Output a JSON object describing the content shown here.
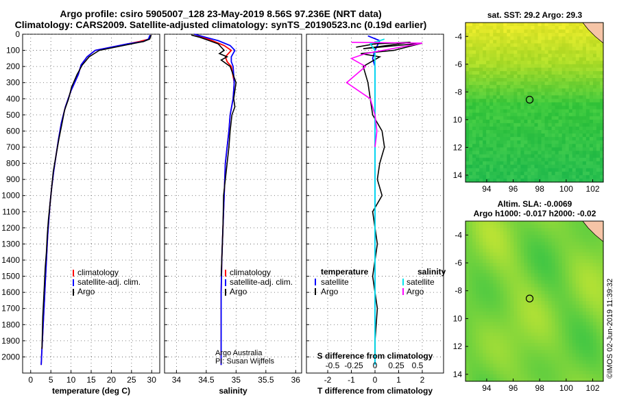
{
  "title_line1": "Argo profile: csiro 5905007_128 23-May-2019 8.56S 97.236E (NRT data)",
  "title_line2": "Climatology: CARS2009. Satellite-adjusted climatology: synTS_20190523.nc (0.19d earlier)",
  "map1_title": "sat. SST: 29.2 Argo: 29.3",
  "map2_title1": "Altim. SLA: -0.0069",
  "map2_title2": "Argo h1000: -0.017 h2000: -0.02",
  "credit": "©IMOS 02-Jun-2019 11:39:32",
  "colors": {
    "climatology": "#ff0000",
    "satellite": "#0000ff",
    "argo": "#000000",
    "satellite_s": "#00e5ee",
    "argo_s": "#ff00ff"
  },
  "chart_data": [
    {
      "type": "line",
      "xlabel": "temperature (deg C)",
      "ylabel": "",
      "xlim": [
        -2,
        32
      ],
      "ylim": [
        2100,
        0
      ],
      "xticks": [
        "0",
        "5",
        "10",
        "15",
        "20",
        "25",
        "30"
      ],
      "yticks": [
        "0",
        "100",
        "200",
        "300",
        "400",
        "500",
        "600",
        "700",
        "800",
        "900",
        "1000",
        "1100",
        "1200",
        "1300",
        "1400",
        "1500",
        "1600",
        "1700",
        "1800",
        "1900",
        "2000"
      ],
      "legend": [
        "climatology",
        "satellite-adj. clim.",
        "Argo"
      ],
      "series": [
        {
          "name": "climatology",
          "x": [
            29.7,
            29.3,
            27,
            24,
            20,
            16,
            14,
            12.5,
            11.8,
            10,
            8.6,
            7.6,
            6.9,
            6.3,
            5.7,
            5.2,
            4.8,
            4.5,
            4.2,
            4.0,
            3.8,
            3.6,
            3.4,
            3.2,
            3.0,
            2.9,
            2.8,
            2.7,
            2.6
          ],
          "y": [
            5,
            30,
            45,
            60,
            80,
            100,
            140,
            190,
            250,
            350,
            450,
            550,
            650,
            750,
            850,
            950,
            1050,
            1150,
            1250,
            1350,
            1450,
            1550,
            1650,
            1750,
            1850,
            1900,
            1950,
            2000,
            2050
          ]
        },
        {
          "name": "satellite-adj. clim.",
          "x": [
            29.6,
            29.2,
            28,
            24,
            20,
            16,
            14,
            12.5,
            11.8,
            10,
            8.6,
            7.6,
            6.9,
            6.3,
            5.7,
            5.2,
            4.8,
            4.5,
            4.2,
            4.0,
            3.8,
            3.6,
            3.4,
            3.2,
            3.0,
            2.9,
            2.8,
            2.7,
            2.6
          ],
          "y": [
            5,
            30,
            45,
            60,
            80,
            100,
            140,
            190,
            250,
            350,
            450,
            550,
            650,
            750,
            850,
            950,
            1050,
            1150,
            1250,
            1350,
            1450,
            1550,
            1650,
            1750,
            1850,
            1900,
            1950,
            2000,
            2050
          ]
        },
        {
          "name": "Argo",
          "x": [
            29.9,
            29.5,
            28,
            25,
            21,
            17,
            14.5,
            12.8,
            11.5,
            10.1,
            9.4,
            8.4,
            7.8,
            7.0,
            6.3,
            5.6,
            5.2,
            4.8,
            4.4,
            4.1,
            3.9,
            3.6,
            3.4,
            3.2,
            3.0,
            2.9,
            2.8
          ],
          "y": [
            5,
            30,
            45,
            60,
            80,
            100,
            140,
            190,
            250,
            330,
            400,
            470,
            550,
            650,
            750,
            850,
            950,
            1050,
            1150,
            1250,
            1350,
            1450,
            1550,
            1650,
            1750,
            1850,
            1950
          ]
        }
      ]
    },
    {
      "type": "line",
      "xlabel": "salinity",
      "ylabel": "",
      "xlim": [
        33.8,
        36.1
      ],
      "ylim": [
        2100,
        0
      ],
      "xticks": [
        "34",
        "34.5",
        "35",
        "35.5",
        "36"
      ],
      "legend": [
        "climatology",
        "satellite-adj. clim.",
        "Argo"
      ],
      "annotation": [
        "Argo Australia",
        "PI: Susan Wijffels"
      ],
      "series": [
        {
          "name": "climatology",
          "x": [
            34.3,
            34.45,
            34.6,
            34.8,
            34.92,
            34.82,
            34.85,
            34.92,
            34.97,
            34.95,
            34.9,
            34.88,
            34.85,
            34.82,
            34.8,
            34.78,
            34.76,
            34.75,
            34.75,
            34.75,
            34.75
          ],
          "y": [
            0,
            20,
            40,
            70,
            100,
            140,
            170,
            200,
            300,
            400,
            500,
            600,
            700,
            800,
            1000,
            1200,
            1400,
            1600,
            1800,
            2000,
            2050
          ]
        },
        {
          "name": "satellite-adj. clim.",
          "x": [
            34.3,
            34.5,
            34.7,
            34.9,
            34.98,
            34.92,
            34.92,
            34.95,
            34.97,
            34.95,
            34.9,
            34.88,
            34.85,
            34.82,
            34.8,
            34.78,
            34.76,
            34.75,
            34.75,
            34.75,
            34.75
          ],
          "y": [
            0,
            20,
            40,
            70,
            100,
            140,
            170,
            200,
            300,
            400,
            500,
            600,
            700,
            800,
            1000,
            1200,
            1400,
            1600,
            1800,
            2000,
            2050
          ]
        },
        {
          "name": "Argo",
          "x": [
            34.25,
            34.4,
            34.55,
            34.7,
            34.75,
            34.8,
            34.72,
            34.85,
            34.75,
            34.9,
            35.0,
            34.96,
            34.98,
            34.93,
            34.9,
            34.88,
            34.85,
            34.82,
            34.79,
            34.78,
            34.76,
            34.75
          ],
          "y": [
            5,
            20,
            40,
            60,
            80,
            100,
            120,
            140,
            160,
            200,
            300,
            400,
            450,
            500,
            600,
            700,
            800,
            900,
            1000,
            1200,
            1400,
            1500
          ]
        }
      ]
    },
    {
      "type": "line",
      "xlabel": "T difference from climatology",
      "ylabel": "",
      "xlim": [
        -2.9,
        2.9
      ],
      "ylim": [
        2100,
        0
      ],
      "xticks": [
        "-2",
        "-1",
        "0",
        "1",
        "2"
      ],
      "secondary_xlabel": "S difference from climatology",
      "secondary_xticks": [
        "-0.5",
        "-0.25",
        "0",
        "0.25",
        "0.5"
      ],
      "legend_titles": [
        "temperature",
        "salinity"
      ],
      "legend": [
        "satellite",
        "Argo",
        "satellite",
        "Argo"
      ],
      "series": [
        {
          "name": "temperature satellite",
          "x": [
            -0.3,
            0.2,
            0.1,
            0,
            -0.1,
            0,
            0,
            0,
            0,
            0,
            0,
            0,
            0,
            0
          ],
          "y": [
            10,
            40,
            70,
            100,
            150,
            200,
            300,
            500,
            800,
            1100,
            1400,
            1700,
            2000,
            2050
          ]
        },
        {
          "name": "temperature Argo",
          "x": [
            -0.8,
            0,
            1.5,
            -0.5,
            2,
            0.8,
            -0.6,
            0.2,
            -0.5,
            -0.3,
            -0.2,
            -0.1,
            0.3,
            0.4,
            0.2,
            0.1,
            0.3,
            -0.1,
            0.1,
            -0.1,
            0.1,
            0,
            0
          ],
          "y": [
            80,
            60,
            50,
            90,
            55,
            100,
            120,
            140,
            200,
            300,
            400,
            500,
            600,
            700,
            800,
            900,
            1000,
            1100,
            1300,
            1500,
            1700,
            1900,
            2000
          ]
        },
        {
          "name": "salinity satellite",
          "x": [
            0.1,
            -0.05,
            0,
            0,
            0,
            0,
            0,
            0
          ],
          "y": [
            30,
            60,
            100,
            200,
            500,
            1000,
            1500,
            2050
          ]
        },
        {
          "name": "salinity Argo",
          "x": [
            -0.25,
            0.5,
            -0.1,
            -0.25,
            -0.1,
            -0.3,
            -0.05,
            0,
            0.02,
            0
          ],
          "y": [
            50,
            55,
            120,
            150,
            200,
            300,
            400,
            500,
            600,
            700
          ]
        }
      ]
    },
    {
      "type": "heatmap",
      "title": "sat. SST: 29.2 Argo: 29.3",
      "xlim": [
        92.4,
        102.8
      ],
      "ylim": [
        -14.5,
        -3.0
      ],
      "xticks": [
        "94",
        "96",
        "98",
        "100",
        "102"
      ],
      "yticks": [
        "-4",
        "-6",
        "-8",
        "-10",
        "-12",
        "-14"
      ],
      "marker": {
        "lon": 97.24,
        "lat": -8.56
      }
    },
    {
      "type": "heatmap",
      "title": "Altim. SLA: -0.0069",
      "xlim": [
        92.4,
        102.8
      ],
      "ylim": [
        -14.5,
        -3.0
      ],
      "xticks": [
        "94",
        "96",
        "98",
        "100",
        "102"
      ],
      "yticks": [
        "-4",
        "-6",
        "-8",
        "-10",
        "-12",
        "-14"
      ],
      "marker": {
        "lon": 97.24,
        "lat": -8.56
      }
    }
  ]
}
